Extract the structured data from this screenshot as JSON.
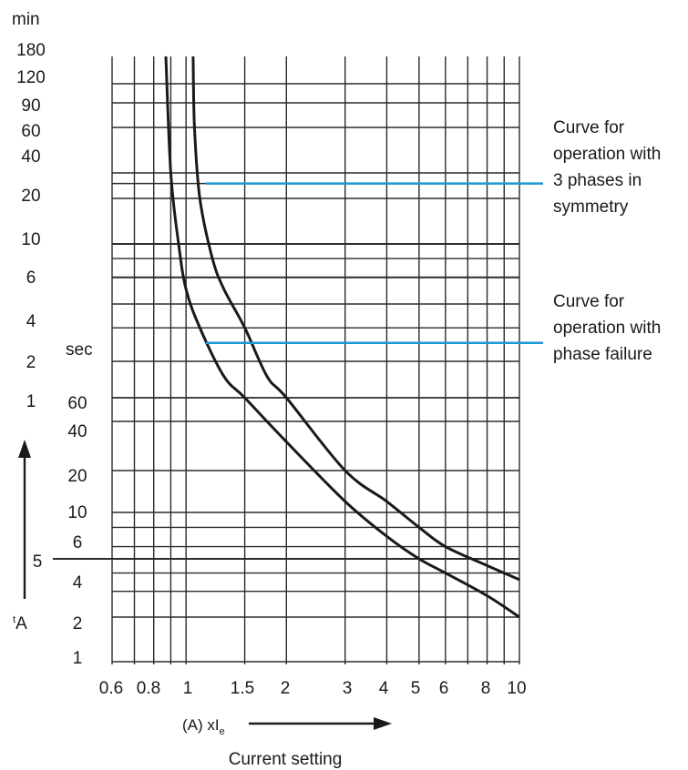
{
  "chart_data": {
    "type": "line",
    "x_scale": "log",
    "xlim": [
      0.6,
      10
    ],
    "x_ticks": [
      "0.6",
      "0.8",
      "1",
      "1.5",
      "2",
      "3",
      "4",
      "5",
      "6",
      "8",
      "10"
    ],
    "x_tick_values": [
      0.6,
      0.8,
      1,
      1.5,
      2,
      3,
      4,
      5,
      6,
      8,
      10
    ],
    "x_minor_lines": [
      0.7,
      0.9,
      7,
      9
    ],
    "xlabel_prefix": "(A) xI",
    "xlabel_subscript": "e",
    "xlabel_caption": "Current setting",
    "ylabel": "tA",
    "y_scale": "log",
    "y_min_units": {
      "label": "min",
      "ticks": [
        "180",
        "120",
        "90",
        "60",
        "40",
        "20",
        "10",
        "6",
        "4",
        "2",
        "1"
      ]
    },
    "y_sec_units": {
      "label": "sec",
      "ticks": [
        "60",
        "40",
        "20",
        "10",
        "6",
        "4",
        "2",
        "1"
      ]
    },
    "y_marker": "5",
    "y_minor_lines_min": [
      30,
      8,
      3
    ],
    "y_minor_lines_sec": [
      8,
      5,
      3
    ],
    "series": [
      {
        "name": "Curve for operation with phase failure",
        "points": [
          [
            0.87,
            "180 min"
          ],
          [
            0.9,
            "40 min"
          ],
          [
            0.95,
            "10 min"
          ],
          [
            1.0,
            "5 min"
          ],
          [
            1.1,
            "3 min"
          ],
          [
            1.3,
            "90 sec"
          ],
          [
            1.5,
            "60 sec"
          ],
          [
            2,
            "30 sec"
          ],
          [
            3,
            "12 sec"
          ],
          [
            4,
            "7 sec"
          ],
          [
            5,
            "5 sec"
          ],
          [
            6,
            "4 sec"
          ],
          [
            8,
            "2.8 sec"
          ],
          [
            10,
            "2 sec"
          ]
        ]
      },
      {
        "name": "Curve for operation with 3 phases in symmetry",
        "points": [
          [
            1.05,
            "180 min"
          ],
          [
            1.06,
            "60 min"
          ],
          [
            1.1,
            "20 min"
          ],
          [
            1.2,
            "8 min"
          ],
          [
            1.3,
            "5 min"
          ],
          [
            1.5,
            "3 min"
          ],
          [
            1.75,
            "90 sec"
          ],
          [
            2,
            "60 sec"
          ],
          [
            3,
            "20 sec"
          ],
          [
            4,
            "12 sec"
          ],
          [
            5,
            "8 sec"
          ],
          [
            6,
            "6 sec"
          ],
          [
            8,
            "4.5 sec"
          ],
          [
            10,
            "3.6 sec"
          ]
        ]
      }
    ],
    "annotations": [
      {
        "text_lines": [
          "Curve for",
          "operation with",
          "3 phases in",
          "symmetry"
        ],
        "color": "#1a9ad6"
      },
      {
        "text_lines": [
          "Curve for",
          "operation with",
          "phase failure"
        ],
        "color": "#1a9ad6"
      }
    ],
    "grid": true,
    "colors": {
      "grid": "#2b2b2b",
      "curve": "#1a1a1a",
      "leader": "#1a9ad6"
    }
  }
}
